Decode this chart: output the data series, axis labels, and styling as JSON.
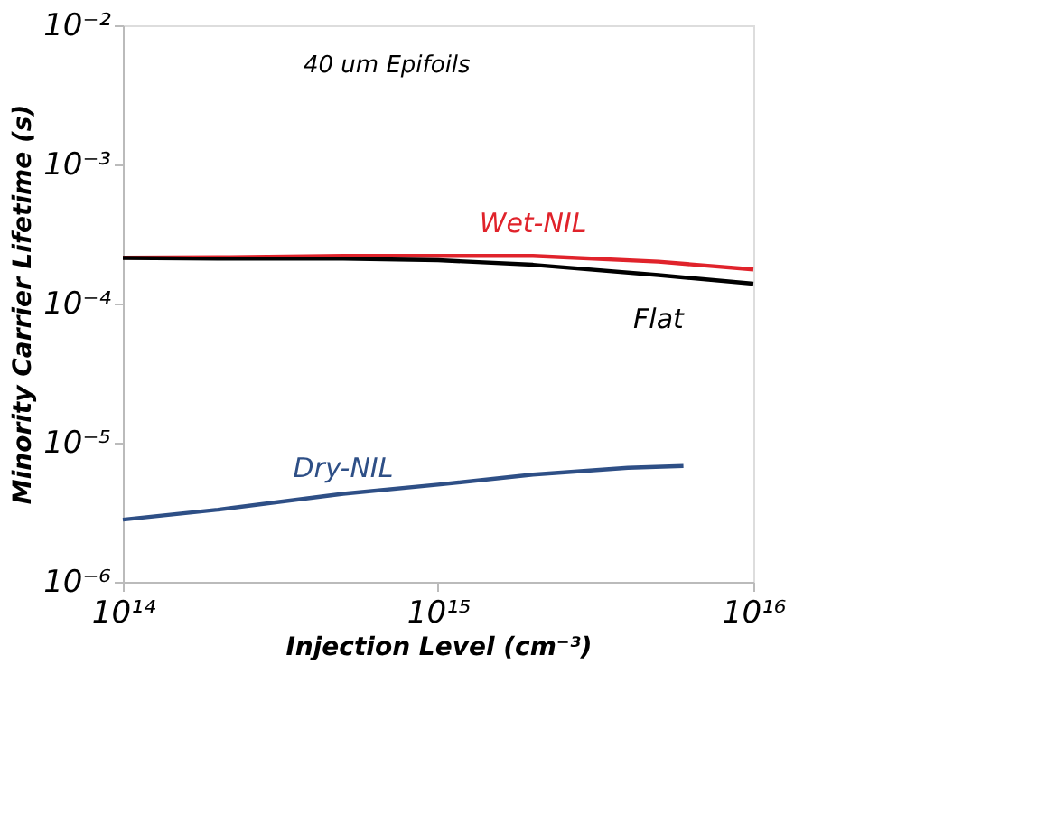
{
  "chart_data": {
    "type": "line",
    "xlabel": "Injection Level (cm⁻³)",
    "ylabel": "Minority Carrier Lifetime (s)",
    "annotations": [
      "40 um Epifoils"
    ],
    "log": "xy",
    "xlim": [
      100000000000000.0,
      1e+16
    ],
    "ylim": [
      1e-06,
      0.01
    ],
    "xticks": [
      {
        "value": 100000000000000.0,
        "label": "10¹⁴"
      },
      {
        "value": 1000000000000000.0,
        "label": "10¹⁵"
      },
      {
        "value": 1e+16,
        "label": "10¹⁶"
      }
    ],
    "yticks": [
      {
        "value": 1e-06,
        "label": "10⁻⁶"
      },
      {
        "value": 1e-05,
        "label": "10⁻⁵"
      },
      {
        "value": 0.0001,
        "label": "10⁻⁴"
      },
      {
        "value": 0.001,
        "label": "10⁻³"
      },
      {
        "value": 0.01,
        "label": "10⁻²"
      }
    ],
    "grid": false,
    "marker": "none",
    "line_style": "solid",
    "series": [
      {
        "name": "Wet-NIL",
        "color": "#e0232b",
        "x": [
          100000000000000.0,
          200000000000000.0,
          500000000000000.0,
          1000000000000000.0,
          2000000000000000.0,
          5000000000000000.0,
          1e+16
        ],
        "values": [
          0.000214,
          0.000215,
          0.00022,
          0.00022,
          0.00022,
          0.0002,
          0.000176
        ]
      },
      {
        "name": "Flat",
        "color": "#000000",
        "x": [
          100000000000000.0,
          200000000000000.0,
          500000000000000.0,
          1000000000000000.0,
          2000000000000000.0,
          5000000000000000.0,
          1e+16
        ],
        "values": [
          0.000213,
          0.00021,
          0.00021,
          0.000205,
          0.00019,
          0.00016,
          0.000139
        ]
      },
      {
        "name": "Dry-NIL",
        "color": "#2e4f86",
        "x": [
          100000000000000.0,
          200000000000000.0,
          500000000000000.0,
          1000000000000000.0,
          2000000000000000.0,
          4000000000000000.0,
          6000000000000000.0
        ],
        "values": [
          2.8e-06,
          3.3e-06,
          4.3e-06,
          5e-06,
          5.9e-06,
          6.6e-06,
          6.8e-06
        ]
      }
    ]
  }
}
